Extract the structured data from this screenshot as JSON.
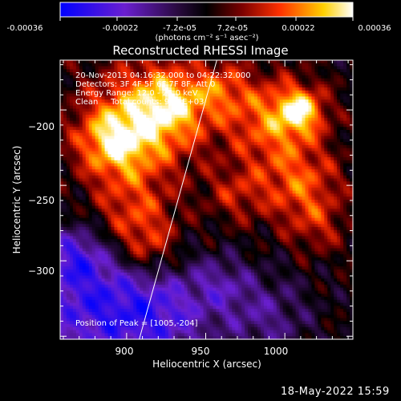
{
  "colorbar": {
    "tick_labels": [
      "-0.00036",
      "-0.00022",
      "-7.2e-05",
      "7.2e-05",
      "0.00022",
      "0.00036"
    ],
    "unit_label": "(photons cm⁻² s⁻¹ asec⁻²)",
    "range": [
      -0.00036,
      0.00036
    ]
  },
  "annotations": [
    "20-Nov-2013 04:16:32.000 to 04:22:32.000",
    "Detectors: 3F 4F 5F 6F 7F 8F, Att 0",
    "Energy Range: 12.0 - 25.0 keV",
    "Clean     Total counts: 9.15E+03"
  ],
  "peak_label": "Position of Peak = [1005,-204]",
  "footer_timestamp": "18-May-2022 15:59",
  "chart_data": {
    "type": "heatmap",
    "title": "Reconstructed RHESSI Image",
    "xlabel": "Heliocentric X (arcsec)",
    "ylabel": "Heliocentric Y (arcsec)",
    "xlim": [
      858,
      1043
    ],
    "ylim": [
      -352,
      -167
    ],
    "x_ticks": [
      900,
      950,
      1000
    ],
    "y_ticks": [
      -200,
      -250,
      -300
    ],
    "colormap": "rhessi-blue-purple-black-red-yellow-white",
    "peak": [
      1005,
      -204
    ],
    "limb_line": [
      [
        908,
        -352
      ],
      [
        957,
        -167
      ]
    ]
  }
}
